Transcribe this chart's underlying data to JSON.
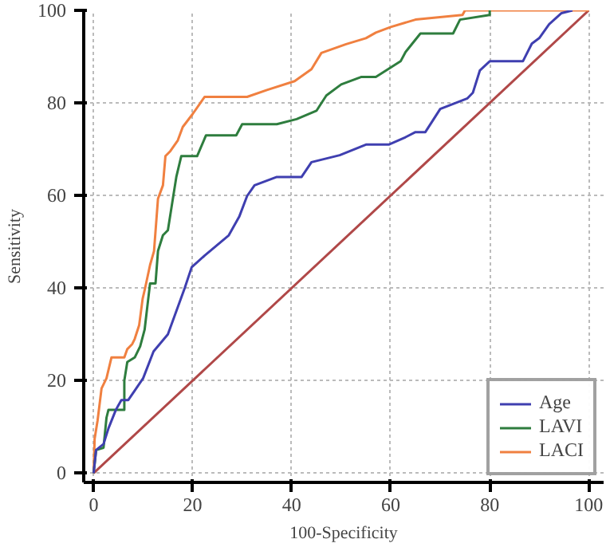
{
  "chart_data": {
    "type": "line",
    "xlabel": "100-Specificity",
    "ylabel": "Sensitivity",
    "xlim": [
      -2,
      103
    ],
    "ylim": [
      -2,
      100
    ],
    "xticks": [
      0,
      20,
      40,
      60,
      80,
      100
    ],
    "yticks": [
      0,
      20,
      40,
      60,
      80,
      100
    ],
    "grid": true,
    "legend": "bottom right",
    "marker": "none",
    "line_style": "solid",
    "series": [
      {
        "name": "Age",
        "color": "#3f3fb0",
        "x": [
          0,
          0.5,
          2,
          3,
          4.5,
          5.6,
          7,
          8.6,
          10,
          12.1,
          15,
          18.4,
          19.8,
          22.4,
          27.3,
          29.4,
          31,
          32.5,
          37,
          42,
          44,
          49.7,
          55,
          59.6,
          63,
          65,
          67,
          70,
          75.5,
          76.6,
          78,
          80,
          86.7,
          88.5,
          90,
          92,
          94.5,
          96.7
        ],
        "values": [
          0,
          5,
          6.3,
          9.7,
          13.7,
          15.8,
          15.8,
          18.3,
          20.5,
          26.3,
          30,
          40,
          44.5,
          47,
          51.4,
          55.4,
          59.9,
          62.2,
          64,
          64,
          67.2,
          68.7,
          71,
          71,
          72.6,
          73.7,
          73.7,
          78.7,
          81,
          82.2,
          87,
          89,
          89,
          92.8,
          94,
          97,
          99.4,
          100
        ]
      },
      {
        "name": "LAVI",
        "color": "#2e7d3e",
        "x": [
          0,
          0.5,
          2,
          2.6,
          3,
          6.2,
          6.2,
          6.8,
          8.3,
          9.4,
          10.3,
          10.9,
          11.4,
          12.5,
          13,
          14,
          15,
          16.7,
          17.7,
          20.9,
          22.7,
          28.8,
          30,
          37,
          41,
          45,
          47,
          50,
          54,
          57,
          62,
          63,
          66,
          72.6,
          74,
          80,
          80
        ],
        "values": [
          0,
          5,
          5.5,
          12,
          13.7,
          13.7,
          20,
          24,
          25,
          27.4,
          31,
          36.5,
          41,
          41,
          48,
          51.4,
          52.5,
          64,
          68.5,
          68.5,
          73,
          73,
          75.4,
          75.4,
          76.5,
          78.3,
          81.6,
          84,
          85.6,
          85.6,
          89,
          91,
          95,
          95,
          98,
          99,
          100
        ]
      },
      {
        "name": "LACI",
        "color": "#f08040",
        "x": [
          0,
          0.2,
          0.8,
          1.6,
          2.6,
          3.6,
          6.2,
          6.8,
          7.8,
          8.3,
          9.2,
          9.9,
          10.4,
          11.4,
          12.2,
          13,
          14,
          14.5,
          15.5,
          17,
          18,
          20,
          22.4,
          31,
          35,
          40.6,
          44,
          46,
          51,
          55,
          57,
          60,
          65,
          74.5,
          75,
          100
        ],
        "values": [
          0,
          7.4,
          11.4,
          18.3,
          20.5,
          25,
          25,
          26.8,
          27.9,
          29,
          32,
          37.7,
          40,
          45,
          48,
          59.3,
          62.2,
          68.5,
          69.6,
          71.9,
          74.8,
          77.6,
          81.3,
          81.3,
          82.8,
          84.7,
          87.3,
          90.8,
          92.7,
          94,
          95.2,
          96.4,
          98,
          99,
          100,
          100
        ]
      },
      {
        "color": "#b04848",
        "x": [
          0,
          100
        ],
        "values": [
          0,
          100
        ]
      }
    ]
  }
}
